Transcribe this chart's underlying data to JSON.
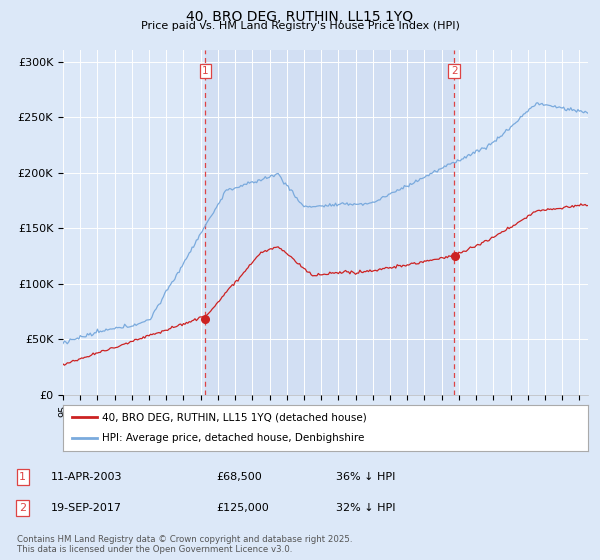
{
  "title": "40, BRO DEG, RUTHIN, LL15 1YQ",
  "subtitle": "Price paid vs. HM Land Registry's House Price Index (HPI)",
  "ylim": [
    0,
    310000
  ],
  "yticks": [
    0,
    50000,
    100000,
    150000,
    200000,
    250000,
    300000
  ],
  "ytick_labels": [
    "£0",
    "£50K",
    "£100K",
    "£150K",
    "£200K",
    "£250K",
    "£300K"
  ],
  "background_color": "#dce8f8",
  "plot_bg_color": "#dce8f8",
  "shaded_bg_color": "#ccdaf0",
  "grid_color": "#ffffff",
  "hpi_color": "#7aaadd",
  "price_color": "#cc2222",
  "vline_color": "#dd4444",
  "marker1_year": 2003.27,
  "marker2_year": 2017.72,
  "marker1_price": 68500,
  "marker2_price": 125000,
  "legend_entry1": "40, BRO DEG, RUTHIN, LL15 1YQ (detached house)",
  "legend_entry2": "HPI: Average price, detached house, Denbighshire",
  "table_row1": [
    "1",
    "11-APR-2003",
    "£68,500",
    "36% ↓ HPI"
  ],
  "table_row2": [
    "2",
    "19-SEP-2017",
    "£125,000",
    "32% ↓ HPI"
  ],
  "copyright_text": "Contains HM Land Registry data © Crown copyright and database right 2025.\nThis data is licensed under the Open Government Licence v3.0.",
  "start_year": 1995,
  "end_year": 2025
}
